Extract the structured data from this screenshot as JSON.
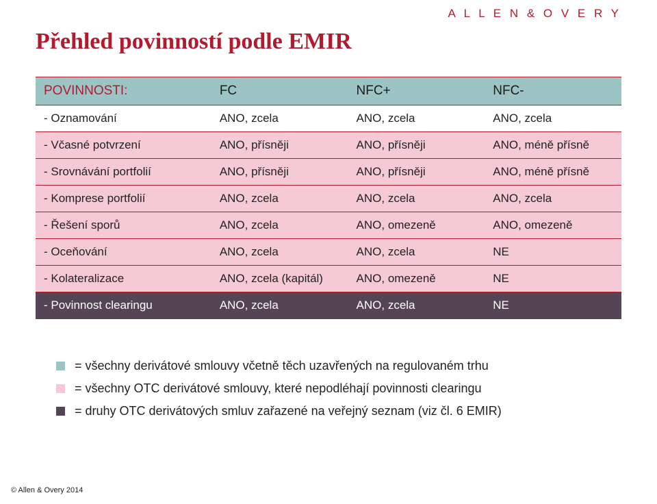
{
  "brand": "A L L E N  &  O V E R Y",
  "title": "Přehled povinností podle EMIR",
  "table": {
    "header_label": "POVINNOSTI:",
    "columns": [
      "FC",
      "NFC+",
      "NFC-"
    ],
    "rows": [
      {
        "style": "white",
        "label": "- Oznamování",
        "cells": [
          "ANO, zcela",
          "ANO, zcela",
          "ANO, zcela"
        ]
      },
      {
        "style": "pink",
        "label": "- Včasné potvrzení",
        "cells": [
          "ANO, přísněji",
          "ANO, přísněji",
          "ANO, méně přísně"
        ]
      },
      {
        "style": "pink",
        "label": "- Srovnávání portfolií",
        "cells": [
          "ANO, přísněji",
          "ANO, přísněji",
          "ANO, méně přísně"
        ]
      },
      {
        "style": "pink",
        "label": "- Komprese portfolií",
        "cells": [
          "ANO, zcela",
          "ANO, zcela",
          "ANO, zcela"
        ]
      },
      {
        "style": "pink",
        "label": "- Řešení sporů",
        "cells": [
          "ANO, zcela",
          "ANO, omezeně",
          "ANO, omezeně"
        ]
      },
      {
        "style": "pink",
        "label": "- Oceňování",
        "cells": [
          "ANO, zcela",
          "ANO, zcela",
          "NE"
        ]
      },
      {
        "style": "pink",
        "label": "- Kolateralizace",
        "cells": [
          "ANO, zcela (kapitál)",
          "ANO, omezeně",
          "NE"
        ]
      },
      {
        "style": "dark",
        "label": "- Povinnost clearingu",
        "cells": [
          "ANO, zcela",
          "ANO, zcela",
          "NE"
        ]
      }
    ]
  },
  "bullets": [
    {
      "color": "#9cc4c4",
      "text": "= všechny derivátové smlouvy včetně těch uzavřených na regulovaném trhu"
    },
    {
      "color": "#f6c9d6",
      "text": "= všechny OTC derivátové smlouvy, které nepodléhají povinnosti clearingu"
    },
    {
      "color": "#554456",
      "text": "= druhy OTC derivátových smluv zařazené na veřejný seznam (viz čl. 6 EMIR)"
    }
  ],
  "footer": "© Allen & Overy 2014"
}
